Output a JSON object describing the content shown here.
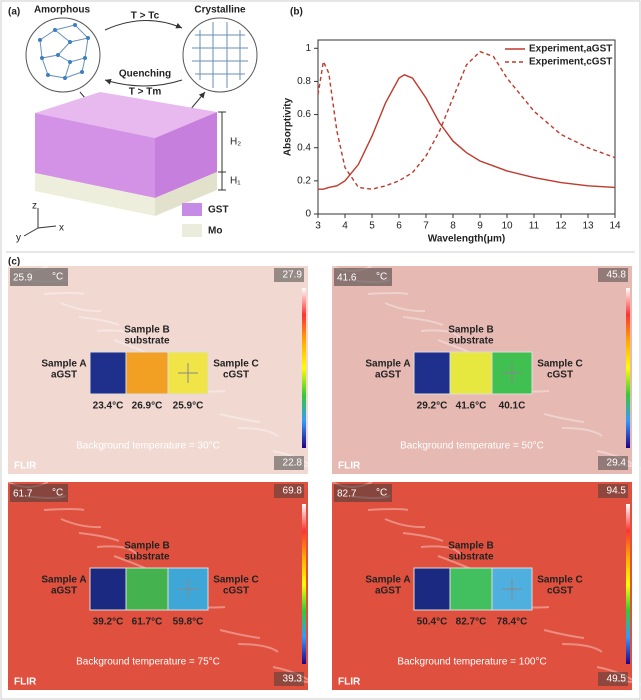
{
  "panel_a": {
    "label": "(a)",
    "amorphous": "Amorphous",
    "crystalline": "Crystalline",
    "heating": "T > Tc",
    "quenching": "Quenching",
    "melting": "T > Tm",
    "h2": "H₂",
    "h1": "H₁",
    "legend": [
      "GST",
      "Mo"
    ],
    "axes": [
      "z",
      "y",
      "x"
    ]
  },
  "chart_data": {
    "type": "line",
    "panel_label": "(b)",
    "xlabel": "Wavelength(μm)",
    "ylabel": "Absorptivity",
    "x": [
      3,
      3.2,
      3.4,
      3.7,
      4,
      4.5,
      5,
      5.5,
      6,
      6.2,
      6.5,
      7,
      7.5,
      8,
      8.5,
      9,
      9.5,
      10,
      11,
      12,
      13,
      14
    ],
    "series": [
      {
        "name": "Experiment,aGST",
        "color": "#c0392b",
        "dash": false,
        "values": [
          0.15,
          0.15,
          0.16,
          0.17,
          0.2,
          0.3,
          0.47,
          0.67,
          0.82,
          0.84,
          0.82,
          0.7,
          0.55,
          0.44,
          0.37,
          0.32,
          0.29,
          0.26,
          0.22,
          0.19,
          0.17,
          0.16
        ]
      },
      {
        "name": "Experiment,cGST",
        "color": "#c0392b",
        "dash": true,
        "values": [
          0.72,
          0.92,
          0.85,
          0.5,
          0.28,
          0.16,
          0.15,
          0.17,
          0.2,
          0.22,
          0.25,
          0.35,
          0.5,
          0.7,
          0.9,
          0.98,
          0.95,
          0.82,
          0.62,
          0.48,
          0.4,
          0.34
        ]
      }
    ],
    "xlim": [
      3,
      14
    ],
    "xticks": [
      3,
      4,
      5,
      6,
      7,
      8,
      9,
      10,
      11,
      12,
      13,
      14
    ],
    "ylim": [
      0,
      1.05
    ],
    "yticks": [
      0,
      0.2,
      0.4,
      0.6,
      0.8,
      1
    ],
    "legend": "upper right"
  },
  "panel_c": {
    "label": "(c)",
    "images": [
      {
        "reading": "25.9",
        "unit": "°C",
        "scale_max": "27.9",
        "scale_min": "22.8",
        "background_text": "Background temperature = 30°C",
        "brand": "FLIR",
        "background": "#f1d9d2",
        "samples": [
          {
            "name": "Sample A",
            "material": "aGST",
            "temperature": "23.4°C",
            "color": "#1f2f8c"
          },
          {
            "name": "Sample B",
            "material": "substrate",
            "temperature": "26.9°C",
            "color": "#f2a024"
          },
          {
            "name": "Sample C",
            "material": "cGST",
            "temperature": "25.9°C",
            "color": "#f1e447"
          }
        ]
      },
      {
        "reading": "41.6",
        "unit": "°C",
        "scale_max": "45.8",
        "scale_min": "29.4",
        "background_text": "Background temperature = 50°C",
        "brand": "FLIR",
        "background": "#e6b9b2",
        "samples": [
          {
            "name": "Sample A",
            "material": "aGST",
            "temperature": "29.2°C",
            "color": "#1f2f8c"
          },
          {
            "name": "Sample B",
            "material": "substrate",
            "temperature": "41.6°C",
            "color": "#e6e83f"
          },
          {
            "name": "Sample C",
            "material": "cGST",
            "temperature": "40.1C",
            "color": "#3fc050"
          }
        ]
      },
      {
        "reading": "61.7",
        "unit": "°C",
        "scale_max": "69.8",
        "scale_min": "39.3",
        "background_text": "Background temperature = 75°C",
        "brand": "FLIR",
        "background": "#e0503e",
        "samples": [
          {
            "name": "Sample A",
            "material": "aGST",
            "temperature": "39.2°C",
            "color": "#1b2a80"
          },
          {
            "name": "Sample B",
            "material": "substrate",
            "temperature": "61.7°C",
            "color": "#43b24f"
          },
          {
            "name": "Sample C",
            "material": "cGST",
            "temperature": "59.8°C",
            "color": "#3fa6d8"
          }
        ]
      },
      {
        "reading": "82.7",
        "unit": "°C",
        "scale_max": "94.5",
        "scale_min": "49.5",
        "background_text": "Background temperature = 100°C",
        "brand": "FLIR",
        "background": "#e0503e",
        "samples": [
          {
            "name": "Sample A",
            "material": "aGST",
            "temperature": "50.4°C",
            "color": "#1b2a80"
          },
          {
            "name": "Sample B",
            "material": "substrate",
            "temperature": "82.7°C",
            "color": "#42c060"
          },
          {
            "name": "Sample C",
            "material": "cGST",
            "temperature": "78.4°C",
            "color": "#4fb0e0"
          }
        ]
      }
    ]
  }
}
